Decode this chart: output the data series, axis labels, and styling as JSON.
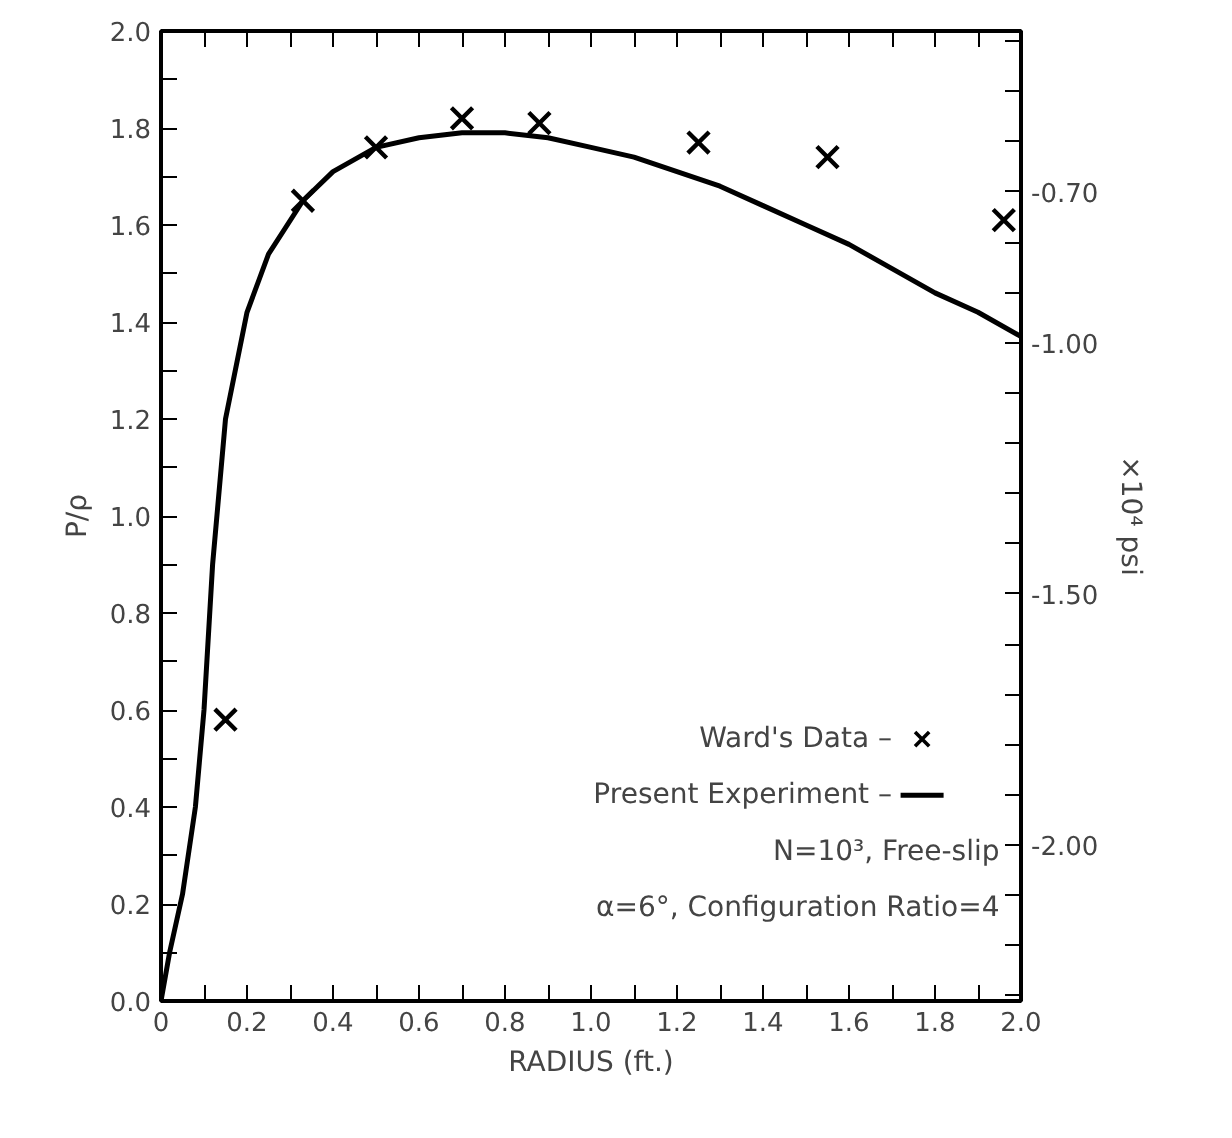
{
  "chart_data": {
    "type": "line",
    "xlabel": "RADIUS (ft.)",
    "ylabel": "P/ρ",
    "y2label": "×10⁴ psi",
    "xlim": [
      0,
      2
    ],
    "ylim": [
      0,
      2
    ],
    "y2lim": [
      -2.31,
      -0.38
    ],
    "xticks": [
      0,
      {
        "value": 0.1,
        "label": null
      },
      {
        "value": 0.2,
        "label": "0.2"
      },
      {
        "value": 0.3,
        "label": null
      },
      {
        "value": 0.4,
        "label": "0.4"
      },
      {
        "value": 0.5,
        "label": null
      },
      {
        "value": 0.6,
        "label": "0.6"
      },
      {
        "value": 0.7,
        "label": null
      },
      {
        "value": 0.8,
        "label": "0.8"
      },
      {
        "value": 0.9,
        "label": null
      },
      {
        "value": 1.0,
        "label": "1.0"
      },
      {
        "value": 1.1,
        "label": null
      },
      {
        "value": 1.2,
        "label": "1.2"
      },
      {
        "value": 1.3,
        "label": null
      },
      {
        "value": 1.4,
        "label": "1.4"
      },
      {
        "value": 1.5,
        "label": null
      },
      {
        "value": 1.6,
        "label": "1.6"
      },
      {
        "value": 1.7,
        "label": null
      },
      {
        "value": 1.8,
        "label": "1.8"
      },
      {
        "value": 1.9,
        "label": null
      },
      {
        "value": 2.0,
        "label": "2.0"
      }
    ],
    "yticks": [
      {
        "value": 0,
        "label": "0.0"
      },
      {
        "value": 0.1,
        "label": null
      },
      {
        "value": 0.2,
        "label": "0.2"
      },
      {
        "value": 0.3,
        "label": null
      },
      {
        "value": 0.4,
        "label": "0.4"
      },
      {
        "value": 0.5,
        "label": null
      },
      {
        "value": 0.6,
        "label": "0.6"
      },
      {
        "value": 0.7,
        "label": null
      },
      {
        "value": 0.8,
        "label": "0.8"
      },
      {
        "value": 0.9,
        "label": null
      },
      {
        "value": 1.0,
        "label": "1.0"
      },
      {
        "value": 1.1,
        "label": null
      },
      {
        "value": 1.2,
        "label": "1.2"
      },
      {
        "value": 1.3,
        "label": null
      },
      {
        "value": 1.4,
        "label": "1.4"
      },
      {
        "value": 1.5,
        "label": null
      },
      {
        "value": 1.6,
        "label": "1.6"
      },
      {
        "value": 1.7,
        "label": null
      },
      {
        "value": 1.8,
        "label": "1.8"
      },
      {
        "value": 1.9,
        "label": null
      },
      {
        "value": 2.0,
        "label": "2.0"
      }
    ],
    "y2ticks": [
      {
        "value": -0.4,
        "label": null
      },
      {
        "value": -0.5,
        "label": null
      },
      {
        "value": -0.6,
        "label": null
      },
      {
        "value": -0.7,
        "label": "-0.70"
      },
      {
        "value": -0.8,
        "label": null
      },
      {
        "value": -0.9,
        "label": null
      },
      {
        "value": -1.0,
        "label": "-1.00"
      },
      {
        "value": -1.1,
        "label": null
      },
      {
        "value": -1.2,
        "label": null
      },
      {
        "value": -1.3,
        "label": null
      },
      {
        "value": -1.4,
        "label": null
      },
      {
        "value": -1.5,
        "label": "-1.50"
      },
      {
        "value": -1.6,
        "label": null
      },
      {
        "value": -1.7,
        "label": null
      },
      {
        "value": -1.8,
        "label": null
      },
      {
        "value": -1.9,
        "label": null
      },
      {
        "value": -2.0,
        "label": "-2.00"
      },
      {
        "value": -2.1,
        "label": null
      },
      {
        "value": -2.2,
        "label": null
      },
      {
        "value": -2.3,
        "label": null
      }
    ],
    "legend": "bottom right",
    "grid": false,
    "series": [
      {
        "name": "Ward's Data –",
        "type": "scatter",
        "marker": "cross",
        "color": "#000000",
        "x": [
          0.15,
          0.33,
          0.5,
          0.7,
          0.88,
          1.25,
          1.55,
          1.96
        ],
        "values": [
          0.58,
          1.65,
          1.76,
          1.82,
          1.81,
          1.77,
          1.74,
          1.61
        ]
      },
      {
        "name": "Present Experiment –",
        "color": "#000000",
        "x": [
          0,
          0.02,
          0.05,
          0.08,
          0.1,
          0.12,
          0.15,
          0.2,
          0.25,
          0.33,
          0.4,
          0.5,
          0.6,
          0.7,
          0.8,
          0.9,
          1.0,
          1.1,
          1.2,
          1.3,
          1.4,
          1.5,
          1.6,
          1.7,
          1.8,
          1.9,
          2.0
        ],
        "values": [
          0,
          0.1,
          0.22,
          0.4,
          0.6,
          0.9,
          1.2,
          1.42,
          1.54,
          1.65,
          1.71,
          1.76,
          1.78,
          1.79,
          1.79,
          1.78,
          1.76,
          1.74,
          1.71,
          1.68,
          1.64,
          1.6,
          1.56,
          1.51,
          1.46,
          1.42,
          1.37
        ]
      }
    ],
    "annotations": [
      "N=10³, Free-slip",
      "α=6°, Configuration Ratio=4"
    ]
  }
}
